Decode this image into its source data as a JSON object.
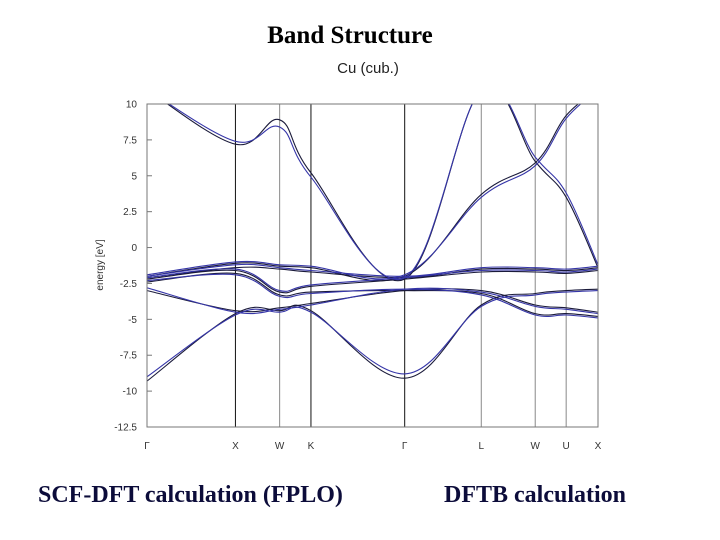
{
  "slide": {
    "title": "Band Structure",
    "caption_left": "SCF-DFT calculation (FPLO)",
    "caption_right": "DFTB calculation"
  },
  "chart_data": {
    "type": "line",
    "title": "Cu (cub.)",
    "ylabel": "energy [eV]",
    "xlabel": "",
    "ylim": [
      -12.5,
      10
    ],
    "yticks": [
      10,
      7.5,
      5,
      2.5,
      0,
      -2.5,
      -5,
      -7.5,
      -10,
      -12.5
    ],
    "ytick_labels": [
      "10",
      "7.5",
      "5",
      "2.5",
      "0",
      "-2.5",
      "-5",
      "-7.5",
      "-10",
      "-12.5"
    ],
    "kpath": {
      "labels": [
        "Γ",
        "X",
        "W",
        "K",
        "Γ",
        "L",
        "W",
        "U",
        "X"
      ],
      "positions": [
        0,
        1,
        1.5,
        1.854,
        2.914,
        3.78,
        4.39,
        4.74,
        5.1
      ]
    },
    "colors": {
      "fplo": "#1a1a3a",
      "dftb": "#3535a8",
      "frame": "#777777"
    },
    "series": [
      {
        "x": [
          0,
          1,
          1.5,
          1.854,
          2.914,
          3.78,
          4.39,
          4.74,
          5.1
        ],
        "bands": [
          [
            -9.3,
            -4.6,
            -4.4,
            -4.4,
            -9.1,
            -4.0,
            -3.2,
            -3.0,
            -2.9
          ],
          [
            -3.0,
            -4.4,
            -4.2,
            -3.9,
            -3.0,
            -3.0,
            -4.0,
            -4.2,
            -4.5
          ],
          [
            -2.4,
            -1.8,
            -3.3,
            -3.1,
            -3.0,
            -3.2,
            -4.6,
            -4.6,
            -4.8
          ],
          [
            -2.2,
            -1.6,
            -3.1,
            -2.7,
            -2.2,
            -1.7,
            -1.7,
            -1.8,
            -1.6
          ],
          [
            -2.1,
            -1.4,
            -1.5,
            -1.7,
            -2.1,
            -1.5,
            -1.5,
            -1.6,
            -1.4
          ],
          [
            -2.0,
            -1.1,
            -1.3,
            -1.4,
            -2.0,
            3.7,
            5.9,
            9.2,
            11.0
          ],
          [
            11.0,
            7.2,
            8.9,
            5.2,
            -2.2,
            11.0,
            6.0,
            3.5,
            -1.4
          ]
        ]
      },
      {
        "x": [
          0,
          1,
          1.5,
          1.854,
          2.914,
          3.78,
          4.39,
          4.74,
          5.1
        ],
        "bands": [
          [
            -9.0,
            -4.7,
            -4.5,
            -4.5,
            -8.8,
            -4.1,
            -3.3,
            -3.1,
            -3.0
          ],
          [
            -2.8,
            -4.5,
            -4.3,
            -4.0,
            -2.9,
            -3.1,
            -4.1,
            -4.3,
            -4.6
          ],
          [
            -2.3,
            -1.9,
            -3.4,
            -3.2,
            -2.9,
            -3.3,
            -4.7,
            -4.7,
            -4.9
          ],
          [
            -2.1,
            -1.5,
            -3.0,
            -2.6,
            -2.1,
            -1.6,
            -1.6,
            -1.7,
            -1.5
          ],
          [
            -2.0,
            -1.2,
            -1.4,
            -1.6,
            -2.0,
            -1.4,
            -1.4,
            -1.5,
            -1.3
          ],
          [
            -1.9,
            -1.0,
            -1.2,
            -1.3,
            -1.9,
            3.5,
            5.7,
            9.0,
            11.0
          ],
          [
            11.0,
            7.4,
            8.4,
            4.9,
            -2.1,
            11.0,
            6.3,
            3.8,
            -1.2
          ]
        ]
      }
    ]
  }
}
